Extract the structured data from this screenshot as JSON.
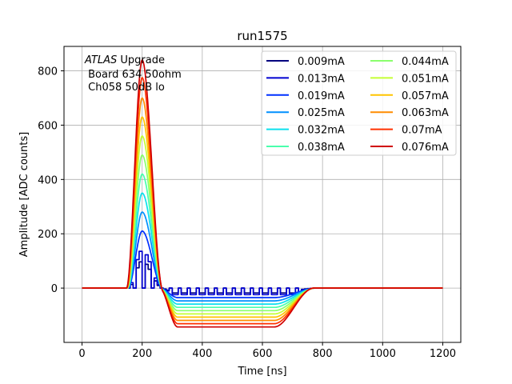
{
  "chart_data": {
    "type": "line",
    "title": "run1575",
    "xlabel": "Time [ns]",
    "ylabel": "Amplitude [ADC counts]",
    "xlim": [
      -60,
      1260
    ],
    "ylim": [
      -200,
      890
    ],
    "xticks": [
      0,
      200,
      400,
      600,
      800,
      1000,
      1200
    ],
    "yticks": [
      0,
      200,
      400,
      600,
      800
    ],
    "grid": true,
    "legend_location": "top-right",
    "legend_columns": 2,
    "annotation": {
      "line1_italic": "ATLAS",
      "line1_rest": " Upgrade",
      "line2": " Board 634 50ohm",
      "line3": " Ch058 50dB lo"
    },
    "series": [
      {
        "name": "0.009mA",
        "color": "#00007f",
        "peak": 100,
        "undershoot": -18,
        "step": true
      },
      {
        "name": "0.013mA",
        "color": "#0000d0",
        "peak": 140,
        "undershoot": -24,
        "step": true
      },
      {
        "name": "0.019mA",
        "color": "#0030ff",
        "peak": 210,
        "undershoot": -35,
        "step": false
      },
      {
        "name": "0.025mA",
        "color": "#0090ff",
        "peak": 280,
        "undershoot": -47,
        "step": false
      },
      {
        "name": "0.032mA",
        "color": "#0ce0ed",
        "peak": 350,
        "undershoot": -59,
        "step": false
      },
      {
        "name": "0.038mA",
        "color": "#4affad",
        "peak": 420,
        "undershoot": -71,
        "step": false
      },
      {
        "name": "0.044mA",
        "color": "#8aff6d",
        "peak": 490,
        "undershoot": -83,
        "step": false
      },
      {
        "name": "0.051mA",
        "color": "#c4ff33",
        "peak": 560,
        "undershoot": -95,
        "step": false
      },
      {
        "name": "0.057mA",
        "color": "#ffc400",
        "peak": 630,
        "undershoot": -107,
        "step": false
      },
      {
        "name": "0.063mA",
        "color": "#ff8c00",
        "peak": 700,
        "undershoot": -119,
        "step": false
      },
      {
        "name": "0.07mA",
        "color": "#ff3000",
        "peak": 775,
        "undershoot": -131,
        "step": false
      },
      {
        "name": "0.076mA",
        "color": "#d00000",
        "peak": 840,
        "undershoot": -143,
        "step": false
      }
    ]
  }
}
